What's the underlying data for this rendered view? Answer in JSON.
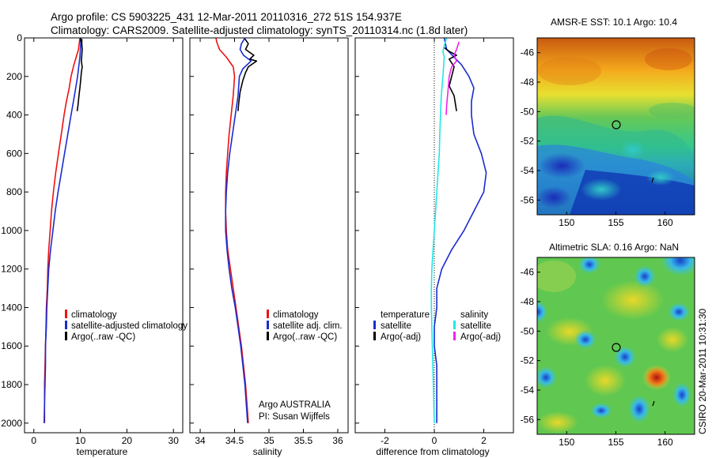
{
  "header": {
    "line1": "Argo profile: CS 5903225_431 12-Mar-2011 20110316_272 51S 154.937E",
    "line2": "Climatology: CARS2009. Satellite-adjusted climatology: synTS_20110314.nc (1.8d later)"
  },
  "colors": {
    "climatology": "#ee1111",
    "satellite": "#1a2bd0",
    "argo": "#000000",
    "satellite_salinity_diff": "#22e6e6",
    "argo_salinity_diff": "#ee22ee",
    "zero_line": "#000000"
  },
  "chart_data": [
    {
      "type": "line",
      "xlabel": "temperature",
      "xlim": [
        -2,
        32
      ],
      "ylim": [
        0,
        2050
      ],
      "y_inverted": true,
      "xticks": [
        "0",
        "10",
        "20",
        "30"
      ],
      "yticks": [
        "0",
        "200",
        "400",
        "600",
        "800",
        "1000",
        "1200",
        "1400",
        "1600",
        "1800",
        "2000"
      ],
      "legend": {
        "position": "lower-right",
        "labels": [
          "climatology",
          "satellite-adjusted climatology",
          "Argo(..raw -QC)"
        ]
      },
      "series": [
        {
          "name": "climatology",
          "color_key": "climatology",
          "points": [
            [
              9.9,
              0
            ],
            [
              9.8,
              20
            ],
            [
              9.6,
              60
            ],
            [
              9.1,
              100
            ],
            [
              8.6,
              140
            ],
            [
              8.0,
              200
            ],
            [
              7.6,
              260
            ],
            [
              7.0,
              330
            ],
            [
              6.5,
              400
            ],
            [
              5.9,
              500
            ],
            [
              5.3,
              600
            ],
            [
              4.7,
              700
            ],
            [
              4.2,
              800
            ],
            [
              3.8,
              900
            ],
            [
              3.5,
              1000
            ],
            [
              3.2,
              1100
            ],
            [
              3.0,
              1200
            ],
            [
              2.9,
              1300
            ],
            [
              2.7,
              1400
            ],
            [
              2.6,
              1500
            ],
            [
              2.5,
              1600
            ],
            [
              2.4,
              1700
            ],
            [
              2.3,
              1800
            ],
            [
              2.3,
              1900
            ],
            [
              2.2,
              2000
            ]
          ]
        },
        {
          "name": "satellite-adjusted climatology",
          "color_key": "satellite",
          "points": [
            [
              10.1,
              0
            ],
            [
              10.1,
              20
            ],
            [
              10.0,
              60
            ],
            [
              9.9,
              100
            ],
            [
              9.7,
              140
            ],
            [
              9.4,
              200
            ],
            [
              9.0,
              260
            ],
            [
              8.5,
              330
            ],
            [
              8.0,
              400
            ],
            [
              7.3,
              500
            ],
            [
              6.6,
              600
            ],
            [
              5.9,
              700
            ],
            [
              5.2,
              800
            ],
            [
              4.6,
              900
            ],
            [
              4.1,
              1000
            ],
            [
              3.6,
              1100
            ],
            [
              3.2,
              1200
            ],
            [
              3.0,
              1300
            ],
            [
              2.8,
              1400
            ],
            [
              2.7,
              1500
            ],
            [
              2.5,
              1600
            ],
            [
              2.5,
              1700
            ],
            [
              2.4,
              1800
            ],
            [
              2.3,
              1900
            ],
            [
              2.3,
              2000
            ]
          ]
        },
        {
          "name": "Argo(..raw -QC)",
          "color_key": "argo",
          "points": [
            [
              10.3,
              5
            ],
            [
              10.3,
              30
            ],
            [
              10.4,
              60
            ],
            [
              10.3,
              90
            ],
            [
              10.2,
              120
            ],
            [
              10.4,
              150
            ],
            [
              10.2,
              180
            ],
            [
              10.1,
              210
            ],
            [
              9.9,
              260
            ],
            [
              9.7,
              300
            ],
            [
              9.5,
              350
            ],
            [
              9.3,
              380
            ]
          ]
        }
      ]
    },
    {
      "type": "line",
      "xlabel": "salinity",
      "xlim": [
        33.85,
        36.15
      ],
      "ylim": [
        0,
        2050
      ],
      "y_inverted": true,
      "xticks": [
        "34",
        "34.5",
        "35",
        "35.5",
        "36"
      ],
      "legend": {
        "position": "lower-right",
        "labels": [
          "climatology",
          "satellite adj. clim.",
          "Argo(..raw -QC)"
        ]
      },
      "annotation": [
        "Argo AUSTRALIA",
        "PI: Susan Wijffels"
      ],
      "series": [
        {
          "name": "climatology",
          "color_key": "climatology",
          "points": [
            [
              34.23,
              0
            ],
            [
              34.24,
              20
            ],
            [
              34.28,
              60
            ],
            [
              34.38,
              100
            ],
            [
              34.48,
              150
            ],
            [
              34.5,
              200
            ],
            [
              34.48,
              300
            ],
            [
              34.45,
              400
            ],
            [
              34.42,
              500
            ],
            [
              34.4,
              600
            ],
            [
              34.38,
              700
            ],
            [
              34.37,
              800
            ],
            [
              34.37,
              900
            ],
            [
              34.38,
              1000
            ],
            [
              34.4,
              1100
            ],
            [
              34.44,
              1200
            ],
            [
              34.48,
              1300
            ],
            [
              34.52,
              1400
            ],
            [
              34.56,
              1500
            ],
            [
              34.6,
              1600
            ],
            [
              34.63,
              1700
            ],
            [
              34.66,
              1800
            ],
            [
              34.68,
              1900
            ],
            [
              34.7,
              2000
            ]
          ]
        },
        {
          "name": "satellite adj. clim.",
          "color_key": "satellite",
          "points": [
            [
              34.65,
              0
            ],
            [
              34.6,
              30
            ],
            [
              34.58,
              60
            ],
            [
              34.63,
              90
            ],
            [
              34.74,
              120
            ],
            [
              34.62,
              160
            ],
            [
              34.57,
              200
            ],
            [
              34.55,
              300
            ],
            [
              34.51,
              400
            ],
            [
              34.47,
              500
            ],
            [
              34.43,
              600
            ],
            [
              34.4,
              700
            ],
            [
              34.38,
              800
            ],
            [
              34.37,
              900
            ],
            [
              34.37,
              1000
            ],
            [
              34.39,
              1100
            ],
            [
              34.42,
              1200
            ],
            [
              34.46,
              1300
            ],
            [
              34.51,
              1400
            ],
            [
              34.55,
              1500
            ],
            [
              34.59,
              1600
            ],
            [
              34.62,
              1700
            ],
            [
              34.65,
              1800
            ],
            [
              34.67,
              1900
            ],
            [
              34.69,
              2000
            ]
          ]
        },
        {
          "name": "Argo(..raw -QC)",
          "color_key": "argo",
          "points": [
            [
              34.65,
              5
            ],
            [
              34.7,
              30
            ],
            [
              34.66,
              60
            ],
            [
              34.78,
              90
            ],
            [
              34.72,
              110
            ],
            [
              34.82,
              120
            ],
            [
              34.7,
              150
            ],
            [
              34.66,
              180
            ],
            [
              34.62,
              220
            ],
            [
              34.58,
              280
            ],
            [
              34.56,
              340
            ],
            [
              34.55,
              380
            ]
          ]
        }
      ]
    },
    {
      "type": "line",
      "xlabel": "difference from climatology",
      "xlim": [
        -3.2,
        3.2
      ],
      "ylim": [
        0,
        2050
      ],
      "y_inverted": true,
      "xticks": [
        "-2",
        "0",
        "2"
      ],
      "legend": {
        "position": "lower",
        "columns": [
          {
            "heading": "temperature",
            "labels": [
              "satellite",
              "Argo(-adj)"
            ]
          },
          {
            "heading": "salinity",
            "labels": [
              "satellite",
              "Argo(-adj)"
            ]
          }
        ]
      },
      "series": [
        {
          "name": "satellite",
          "group": "temperature",
          "color_key": "satellite",
          "points": [
            [
              0.4,
              0
            ],
            [
              0.5,
              60
            ],
            [
              0.8,
              100
            ],
            [
              1.1,
              140
            ],
            [
              1.4,
              200
            ],
            [
              1.6,
              260
            ],
            [
              1.5,
              330
            ],
            [
              1.5,
              400
            ],
            [
              1.6,
              500
            ],
            [
              1.9,
              600
            ],
            [
              2.1,
              700
            ],
            [
              2.0,
              800
            ],
            [
              1.6,
              900
            ],
            [
              1.2,
              1000
            ],
            [
              0.7,
              1100
            ],
            [
              0.3,
              1200
            ],
            [
              0.1,
              1300
            ],
            [
              0.1,
              1400
            ],
            [
              0.0,
              1500
            ],
            [
              0.0,
              1600
            ],
            [
              0.1,
              1700
            ],
            [
              0.1,
              1800
            ],
            [
              0.1,
              1900
            ],
            [
              0.1,
              2000
            ]
          ]
        },
        {
          "name": "Argo(-adj)",
          "group": "temperature",
          "color_key": "argo",
          "points": [
            [
              0.4,
              50
            ],
            [
              0.6,
              70
            ],
            [
              0.9,
              90
            ],
            [
              0.6,
              110
            ],
            [
              0.8,
              150
            ],
            [
              0.7,
              200
            ],
            [
              0.6,
              250
            ],
            [
              0.8,
              300
            ],
            [
              0.9,
              380
            ]
          ]
        },
        {
          "name": "satellite",
          "group": "salinity",
          "color_key": "satellite_salinity_diff",
          "points": [
            [
              0.5,
              0
            ],
            [
              0.4,
              40
            ],
            [
              0.35,
              70
            ],
            [
              0.4,
              100
            ],
            [
              0.35,
              200
            ],
            [
              0.28,
              300
            ],
            [
              0.25,
              400
            ],
            [
              0.22,
              500
            ],
            [
              0.2,
              600
            ],
            [
              0.15,
              700
            ],
            [
              0.1,
              800
            ],
            [
              0.05,
              900
            ],
            [
              0.0,
              1000
            ],
            [
              -0.05,
              1100
            ],
            [
              -0.1,
              1200
            ],
            [
              -0.12,
              1300
            ],
            [
              -0.12,
              1400
            ],
            [
              -0.1,
              1500
            ],
            [
              -0.08,
              1600
            ],
            [
              -0.06,
              1700
            ],
            [
              -0.04,
              1800
            ],
            [
              -0.02,
              1900
            ],
            [
              0.0,
              2000
            ]
          ]
        },
        {
          "name": "Argo(-adj)",
          "group": "salinity",
          "color_key": "argo_salinity_diff",
          "points": [
            [
              1.0,
              20
            ],
            [
              0.9,
              60
            ],
            [
              0.8,
              90
            ],
            [
              0.9,
              120
            ],
            [
              0.7,
              150
            ],
            [
              0.6,
              200
            ],
            [
              0.55,
              280
            ],
            [
              0.5,
              350
            ],
            [
              0.48,
              400
            ]
          ]
        }
      ]
    },
    {
      "type": "heatmap",
      "title": "AMSR-E SST: 10.1 Argo: 10.4",
      "xlim": [
        147,
        163
      ],
      "ylim": [
        -57,
        -45
      ],
      "xticks": [
        "150",
        "155",
        "160"
      ],
      "yticks": [
        "-46",
        "-48",
        "-50",
        "-52",
        "-54",
        "-56"
      ],
      "colormap": "jet",
      "marker": [
        155,
        -51
      ]
    },
    {
      "type": "heatmap",
      "title": "Altimetric SLA: 0.16 Argo: NaN",
      "xlim": [
        147,
        163
      ],
      "ylim": [
        -57,
        -45
      ],
      "xticks": [
        "150",
        "155",
        "160"
      ],
      "yticks": [
        "-46",
        "-48",
        "-50",
        "-52",
        "-54",
        "-56"
      ],
      "colormap": "jet",
      "marker": [
        155,
        -51
      ]
    }
  ],
  "side_label": "CSIRO 20-Mar-2011 10:31:30"
}
